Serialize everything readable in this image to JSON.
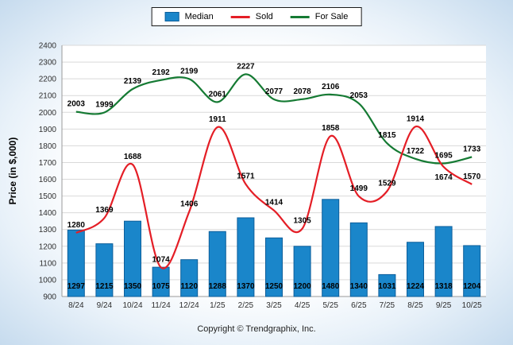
{
  "legend": {
    "items": [
      {
        "label": "Median",
        "series": "Median"
      },
      {
        "label": "Sold",
        "series": "Sold"
      },
      {
        "label": "For Sale",
        "series": "For Sale"
      }
    ]
  },
  "footer": {
    "copyright": "Copyright © Trendgraphix, Inc."
  },
  "chart_data": {
    "type": "combo",
    "categories": [
      "8/24",
      "9/24",
      "10/24",
      "11/24",
      "12/24",
      "1/25",
      "2/25",
      "3/25",
      "4/25",
      "5/25",
      "6/25",
      "7/25",
      "8/25",
      "9/25",
      "10/25"
    ],
    "series": [
      {
        "name": "Median",
        "type": "bar",
        "color": "#1a86ca",
        "border_color": "#0d5f9b",
        "values": [
          1297,
          1215,
          1350,
          1075,
          1120,
          1288,
          1370,
          1250,
          1200,
          1480,
          1340,
          1031,
          1224,
          1318,
          1204
        ]
      },
      {
        "name": "Sold",
        "type": "line",
        "color": "#e41e26",
        "values": [
          1280,
          1369,
          1688,
          1074,
          1406,
          1911,
          1571,
          1414,
          1305,
          1858,
          1499,
          1529,
          1914,
          1674,
          1570
        ]
      },
      {
        "name": "For Sale",
        "type": "line",
        "color": "#157a33",
        "values": [
          2003,
          1999,
          2139,
          2192,
          2199,
          2061,
          2227,
          2077,
          2078,
          2106,
          2053,
          1815,
          1722,
          1695,
          1733
        ]
      }
    ],
    "title": "",
    "xlabel": "",
    "ylabel": "Price (in $,000)",
    "ylim": [
      900,
      2400
    ],
    "ytick_step": 100,
    "grid": true,
    "legend_position": "top",
    "label_offsets": {
      "Sold": {
        "13": 16
      }
    }
  }
}
